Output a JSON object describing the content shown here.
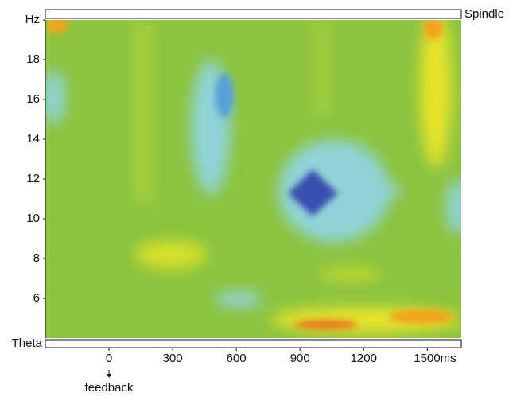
{
  "chart_data": {
    "type": "heatmap",
    "xlim": [
      -300,
      1660
    ],
    "xticks": [
      0,
      300,
      600,
      900,
      1200,
      {
        "value": 1500,
        "label": "1500ms"
      }
    ],
    "ylim": [
      4,
      20
    ],
    "yticks": [
      6,
      8,
      10,
      12,
      14,
      16,
      18,
      {
        "value": 20,
        "label": "Hz"
      }
    ],
    "bands": {
      "top": "Spindle",
      "bottom": "Theta"
    },
    "annotations": [
      {
        "text": "feedback",
        "x": 0
      }
    ]
  }
}
